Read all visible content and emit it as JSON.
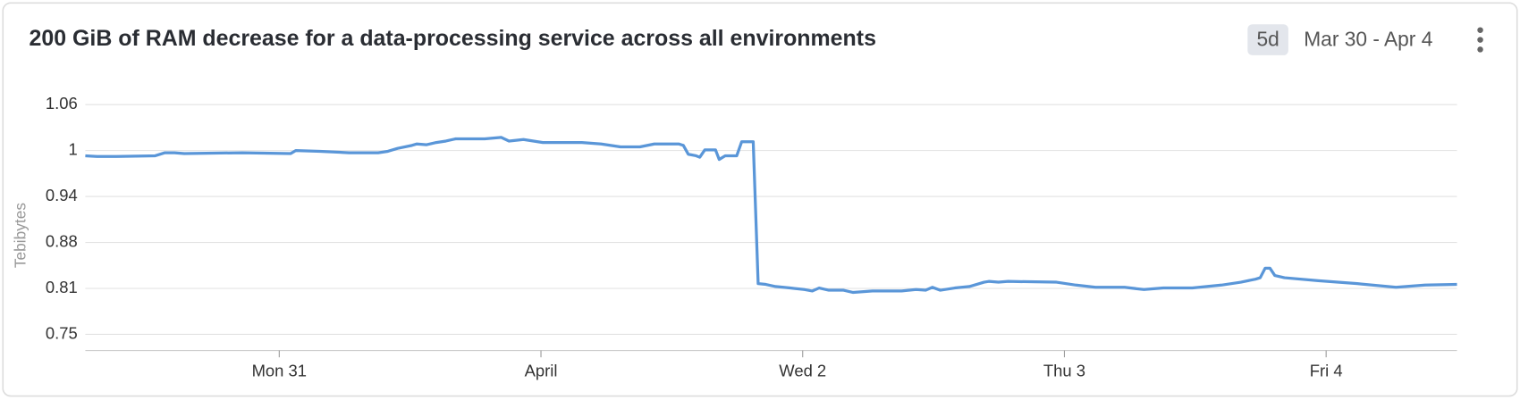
{
  "chart_data": {
    "type": "line",
    "title": "200 GiB of RAM decrease for a data-processing service across all environments",
    "range_button": "5d",
    "date_range": "Mar 30 - Apr 4",
    "y_label": "Tebibytes",
    "x": [
      0.259,
      0.304,
      0.378,
      0.526,
      0.563,
      0.6,
      0.637,
      0.859,
      1.044,
      1.063,
      1.156,
      1.267,
      1.378,
      1.415,
      1.452,
      1.507,
      1.526,
      1.563,
      1.6,
      1.637,
      1.674,
      1.711,
      1.785,
      1.848,
      1.878,
      1.933,
      2.007,
      2.156,
      2.23,
      2.304,
      2.378,
      2.433,
      2.526,
      2.544,
      2.563,
      2.593,
      2.607,
      2.626,
      2.667,
      2.681,
      2.704,
      2.748,
      2.767,
      2.811,
      2.83,
      2.859,
      2.896,
      2.952,
      3.007,
      3.037,
      3.063,
      3.1,
      3.156,
      3.193,
      3.267,
      3.378,
      3.433,
      3.47,
      3.496,
      3.526,
      3.581,
      3.637,
      3.693,
      3.711,
      3.748,
      3.785,
      3.97,
      4.044,
      4.119,
      4.23,
      4.304,
      4.378,
      4.489,
      4.6,
      4.674,
      4.73,
      4.748,
      4.767,
      4.785,
      4.804,
      4.841,
      4.97,
      5.119,
      5.267,
      5.378,
      5.5
    ],
    "series": [
      {
        "color": "#5a96d8",
        "values": [
          0.993,
          0.992,
          0.992,
          0.993,
          0.997,
          0.997,
          0.996,
          0.997,
          0.996,
          1,
          0.999,
          0.997,
          0.997,
          0.999,
          1.003,
          1.007,
          1.009,
          1.008,
          1.011,
          1.013,
          1.016,
          1.016,
          1.016,
          1.018,
          1.013,
          1.015,
          1.011,
          1.011,
          1.009,
          1.005,
          1.005,
          1.009,
          1.009,
          1.007,
          0.995,
          0.993,
          0.991,
          1.001,
          1.001,
          0.988,
          0.993,
          0.993,
          1.012,
          1.012,
          0.819,
          0.818,
          0.815,
          0.813,
          0.811,
          0.809,
          0.813,
          0.81,
          0.81,
          0.807,
          0.809,
          0.809,
          0.811,
          0.81,
          0.814,
          0.81,
          0.813,
          0.815,
          0.821,
          0.822,
          0.821,
          0.822,
          0.821,
          0.817,
          0.814,
          0.814,
          0.811,
          0.813,
          0.813,
          0.817,
          0.821,
          0.825,
          0.827,
          0.84,
          0.84,
          0.83,
          0.827,
          0.823,
          0.819,
          0.814,
          0.817,
          0.818
        ]
      }
    ],
    "xlim": [
      0.259,
      5.5
    ],
    "xticks": [
      {
        "value": 1,
        "label": "Mon 31"
      },
      {
        "value": 2,
        "label": "April"
      },
      {
        "value": 3,
        "label": "Wed 2"
      },
      {
        "value": 4,
        "label": "Thu 3"
      },
      {
        "value": 5,
        "label": "Fri 4"
      }
    ],
    "ylim": [
      0.728,
      1.073
    ],
    "yticks": [
      0.75,
      {
        "value": 0.8125,
        "label": "0.81"
      },
      {
        "value": 0.875,
        "label": "0.88"
      },
      {
        "value": 0.9375,
        "label": "0.94"
      },
      1,
      {
        "value": 1.0625,
        "label": "1.06"
      }
    ],
    "grid": true
  }
}
